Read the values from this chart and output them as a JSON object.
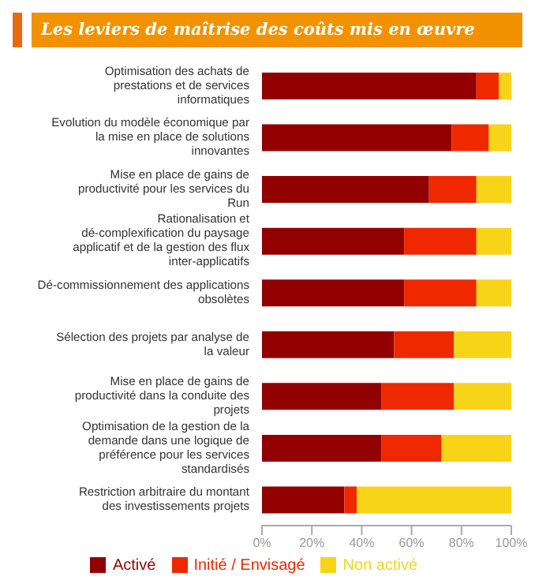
{
  "chart_data": {
    "type": "bar",
    "orientation": "horizontal",
    "stacked": true,
    "title": "Les leviers de maîtrise des coûts mis en œuvre",
    "categories": [
      "Optimisation des achats de prestations et de services informatiques",
      "Evolution du modèle économique par la mise en place de solutions innovantes",
      "Mise en place de gains de productivité pour les services du Run",
      "Rationalisation et dé-complexification du paysage applicatif et de la gestion des flux inter-applicatifs",
      "Dé-commissionnement des applications obsolètes",
      "Sélection des projets par analyse de la valeur",
      "Mise en place de gains de productivité dans la conduite des projets",
      "Optimisation de la gestion de la demande dans une logique de préférence pour les services standardisés",
      "Restriction arbitraire du montant des investissements projets"
    ],
    "series": [
      {
        "name": "Activé",
        "color": "#920000",
        "values": [
          86,
          76,
          67,
          57,
          57,
          53,
          48,
          48,
          33
        ]
      },
      {
        "name": "Initié / Envisagé",
        "color": "#f02800",
        "values": [
          9,
          15,
          19,
          29,
          29,
          24,
          29,
          24,
          5
        ]
      },
      {
        "name": "Non activé",
        "color": "#f8d418",
        "values": [
          5,
          9,
          14,
          14,
          14,
          23,
          23,
          28,
          62
        ]
      }
    ],
    "xlim": [
      0,
      100
    ],
    "xticks": [
      {
        "value": 0,
        "label": "0%"
      },
      {
        "value": 20,
        "label": "20%"
      },
      {
        "value": 40,
        "label": "40%"
      },
      {
        "value": 60,
        "label": "60%"
      },
      {
        "value": 80,
        "label": "80%"
      },
      {
        "value": 100,
        "label": "100%"
      }
    ],
    "legend": "bottom"
  }
}
